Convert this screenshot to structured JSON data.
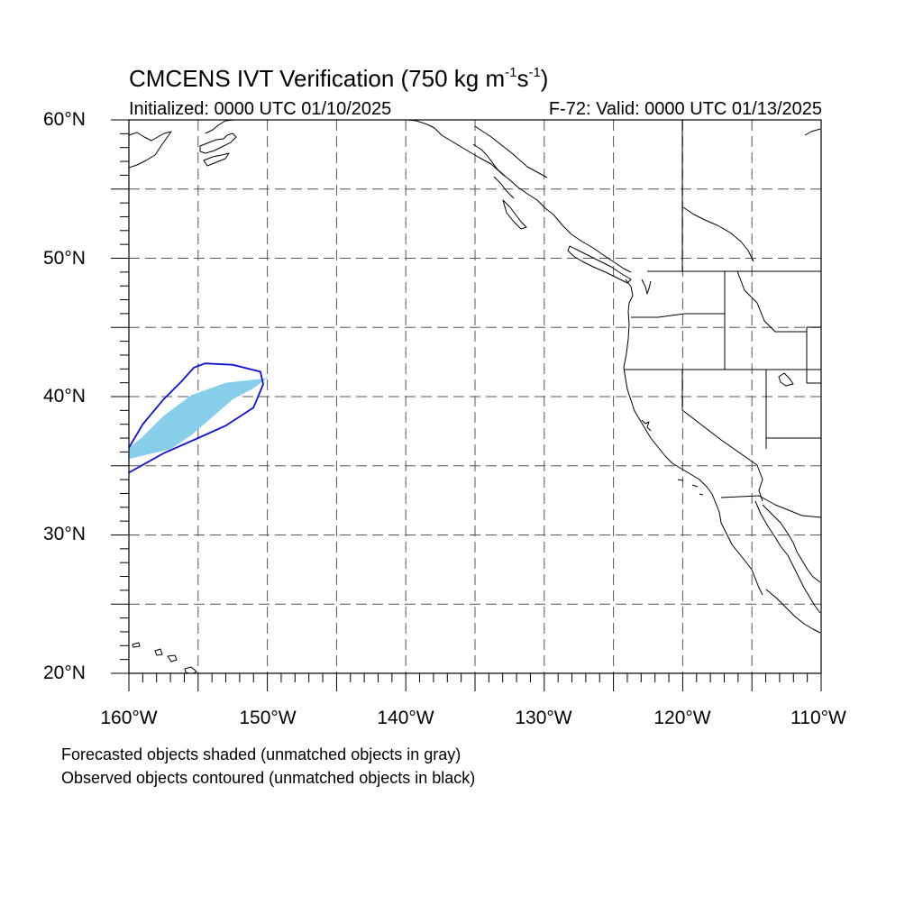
{
  "title": {
    "prefix": "CMCENS IVT Verification (750 kg m",
    "exp1": "-1",
    "mid": "s",
    "exp2": "-1",
    "suffix": ")"
  },
  "subtitle_left": "Initialized: 0000 UTC 01/10/2025",
  "subtitle_right": "F-72: Valid: 0000 UTC 01/13/2025",
  "lat_labels": [
    "60°N",
    "50°N",
    "40°N",
    "30°N",
    "20°N"
  ],
  "lon_labels": [
    "160°W",
    "150°W",
    "140°W",
    "130°W",
    "120°W",
    "110°W"
  ],
  "notes": [
    "Forecasted objects shaded (unmatched objects in gray)",
    "Observed objects contoured (unmatched objects in black)"
  ],
  "colors": {
    "forecast_fill": "#87ceeb",
    "observed_contour": "#1010dd",
    "coastline": "#000000",
    "grid": "#555555"
  },
  "chart_data": {
    "type": "map",
    "projection": "cylindrical-equidistant",
    "lon_range": [
      -160,
      -110
    ],
    "lat_range": [
      20,
      60
    ],
    "grid_lon": [
      -155,
      -150,
      -145,
      -140,
      -135,
      -130,
      -125,
      -120,
      -115
    ],
    "grid_lat": [
      25,
      30,
      35,
      40,
      45,
      50,
      55
    ],
    "forecast_object": {
      "matched": true,
      "polygon_lonlat": [
        [
          -160,
          35.5
        ],
        [
          -157,
          36.2
        ],
        [
          -155.5,
          37.2
        ],
        [
          -154,
          38.5
        ],
        [
          -152.5,
          39.8
        ],
        [
          -151,
          40.6
        ],
        [
          -149.8,
          41.5
        ],
        [
          -150.2,
          41.3
        ],
        [
          -153,
          41.0
        ],
        [
          -155.5,
          40.1
        ],
        [
          -157.5,
          38.6
        ],
        [
          -159,
          37.1
        ],
        [
          -160,
          36.3
        ]
      ]
    },
    "observed_object": {
      "matched": true,
      "polygon_lonlat": [
        [
          -160,
          34.5
        ],
        [
          -157.5,
          35.9
        ],
        [
          -155,
          37.0
        ],
        [
          -153,
          37.9
        ],
        [
          -151,
          39.2
        ],
        [
          -150.3,
          40.9
        ],
        [
          -150.5,
          41.8
        ],
        [
          -152.5,
          42.3
        ],
        [
          -154.5,
          42.4
        ],
        [
          -155.3,
          42.1
        ],
        [
          -156.2,
          41.1
        ],
        [
          -157.5,
          39.8
        ],
        [
          -159,
          38.0
        ],
        [
          -160,
          36.3
        ]
      ]
    }
  }
}
